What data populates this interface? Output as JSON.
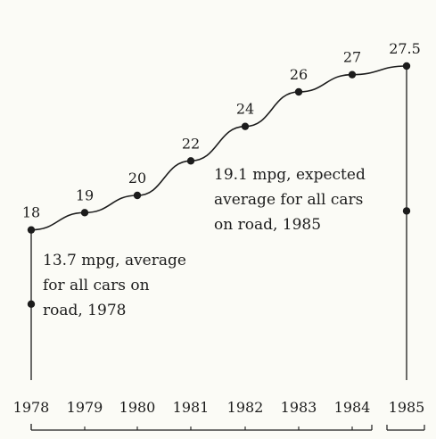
{
  "chart_data": {
    "type": "line",
    "title": "",
    "xlabel": "",
    "ylabel": "",
    "categories": [
      "1978",
      "1979",
      "1980",
      "1981",
      "1982",
      "1983",
      "1984",
      "1985"
    ],
    "values": [
      18,
      19,
      20,
      22,
      24,
      26,
      27,
      27.5
    ],
    "value_labels": [
      "18",
      "19",
      "20",
      "22",
      "24",
      "26",
      "27",
      "27.5"
    ],
    "ylim": [
      11,
      29
    ],
    "grid": false,
    "annotations": [
      {
        "x": "1978",
        "y": 13.7,
        "lines": [
          "13.7 mpg, average",
          "for all cars on",
          "road, 1978"
        ]
      },
      {
        "x": "1985",
        "y": 19.1,
        "lines": [
          "19.1 mpg, expected",
          "average for all cars",
          "on road, 1985"
        ]
      }
    ]
  },
  "colors": {
    "ink": "#1c1c1c",
    "background": "#fbfbf6"
  }
}
